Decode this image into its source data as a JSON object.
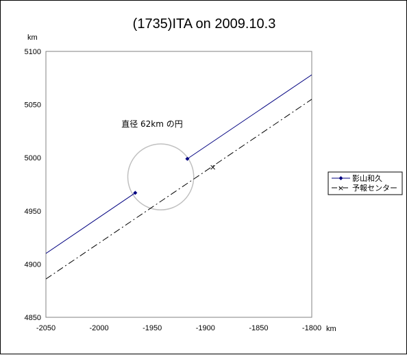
{
  "chart_data": {
    "type": "line",
    "title": "(1735)ITA on 2009.10.3",
    "xunit": "km",
    "yunit": "km",
    "xlim": [
      -2050,
      -1800
    ],
    "ylim": [
      4850,
      5100
    ],
    "xticks": [
      -2050,
      -2000,
      -1950,
      -1900,
      -1850,
      -1800
    ],
    "yticks": [
      4850,
      4900,
      4950,
      5000,
      5050,
      5100
    ],
    "xtick_labels": [
      "-2050",
      "-2000",
      "-1950",
      "-1900",
      "-1850",
      "-1800"
    ],
    "ytick_labels": [
      "4850",
      "4900",
      "4950",
      "5000",
      "5050",
      "5100"
    ],
    "grid": false,
    "legend_position": "right",
    "series": [
      {
        "name": "影山和久",
        "color": "#000080",
        "style": "solid",
        "marker": "diamond",
        "segments": [
          [
            [
              -2050,
              4910
            ],
            [
              -1966,
              4967
            ]
          ],
          [
            [
              -1917,
              4999
            ],
            [
              -1800,
              5078
            ]
          ]
        ],
        "markers": [
          [
            -1966,
            4967
          ],
          [
            -1917,
            4999
          ]
        ]
      },
      {
        "name": "予報センター",
        "color": "#000000",
        "style": "dashdot",
        "marker": "x",
        "segments": [
          [
            [
              -2050,
              4886
            ],
            [
              -1800,
              5055
            ]
          ]
        ],
        "markers": [
          [
            -1893,
            4991
          ]
        ]
      }
    ],
    "circle": {
      "center": [
        -1942,
        4982
      ],
      "diameter": 62,
      "color": "#c0c0c0"
    },
    "annotation": {
      "text": "直径 62km の円",
      "position": [
        -1979,
        5029
      ]
    }
  }
}
